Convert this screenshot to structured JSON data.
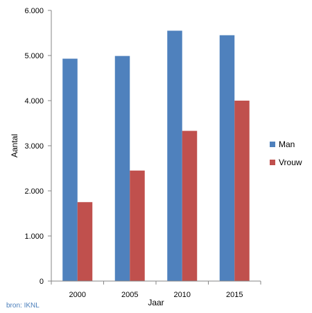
{
  "chart_data": {
    "type": "bar",
    "categories": [
      "2000",
      "2005",
      "2010",
      "2015"
    ],
    "series": [
      {
        "name": "Man",
        "color": "#4f81bd",
        "values": [
          4930,
          4990,
          5550,
          5450
        ]
      },
      {
        "name": "Vrouw",
        "color": "#c0504d",
        "values": [
          1750,
          2450,
          3330,
          4000
        ]
      }
    ],
    "xlabel": "Jaar",
    "ylabel": "Aantal",
    "ylim": [
      0,
      6000
    ],
    "yticks": [
      0,
      1000,
      2000,
      3000,
      4000,
      5000,
      6000
    ],
    "ytick_labels": [
      "0",
      "1.000",
      "2.000",
      "3.000",
      "4.000",
      "5.000",
      "6.000"
    ],
    "legend_position": "right",
    "grid": false
  },
  "source_note": "bron: IKNL"
}
